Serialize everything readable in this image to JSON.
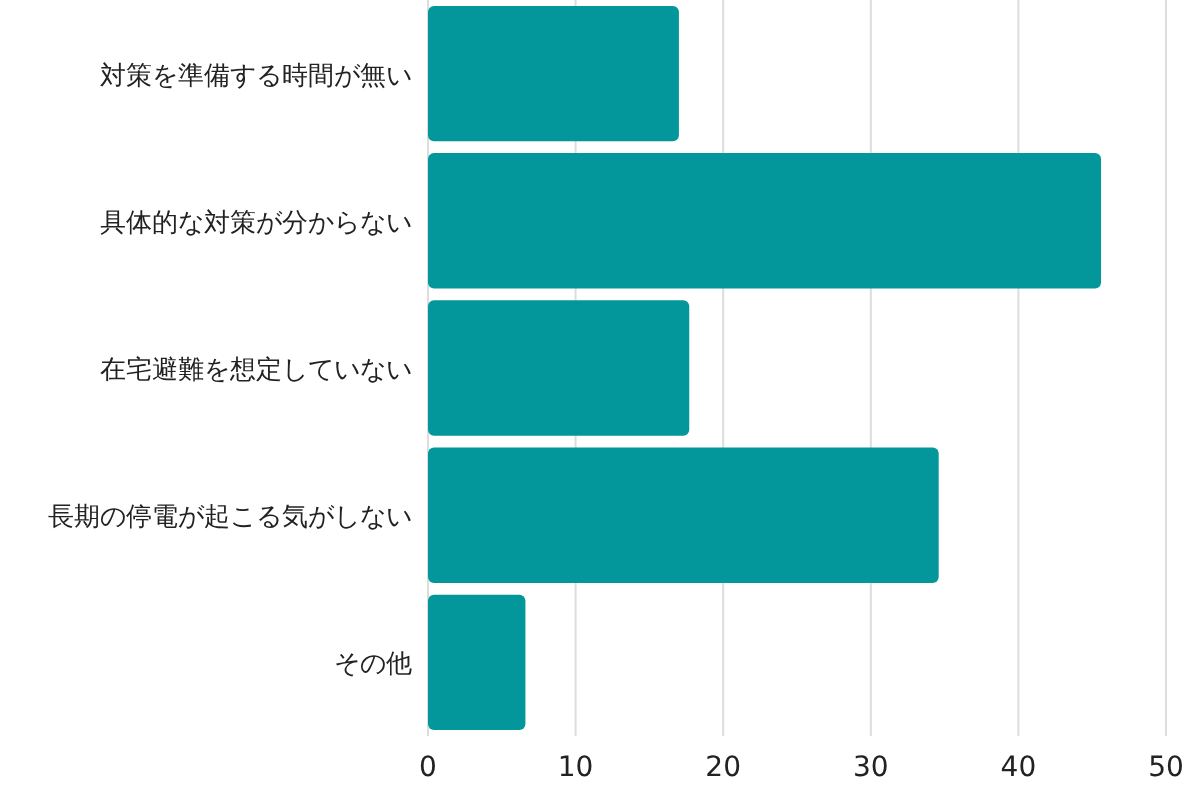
{
  "chart_data": {
    "type": "bar",
    "orientation": "horizontal",
    "categories": [
      "対策を準備する時間が無い",
      "具体的な対策が分からない",
      "在宅避難を想定していない",
      "長期の停電が起こる気がしない",
      "その他"
    ],
    "values": [
      17.0,
      45.6,
      17.7,
      34.6,
      6.6
    ],
    "color": "#03979b",
    "xlim": [
      0,
      50
    ],
    "xticks": [
      0,
      10,
      20,
      30,
      40,
      50
    ],
    "grid": "x"
  }
}
